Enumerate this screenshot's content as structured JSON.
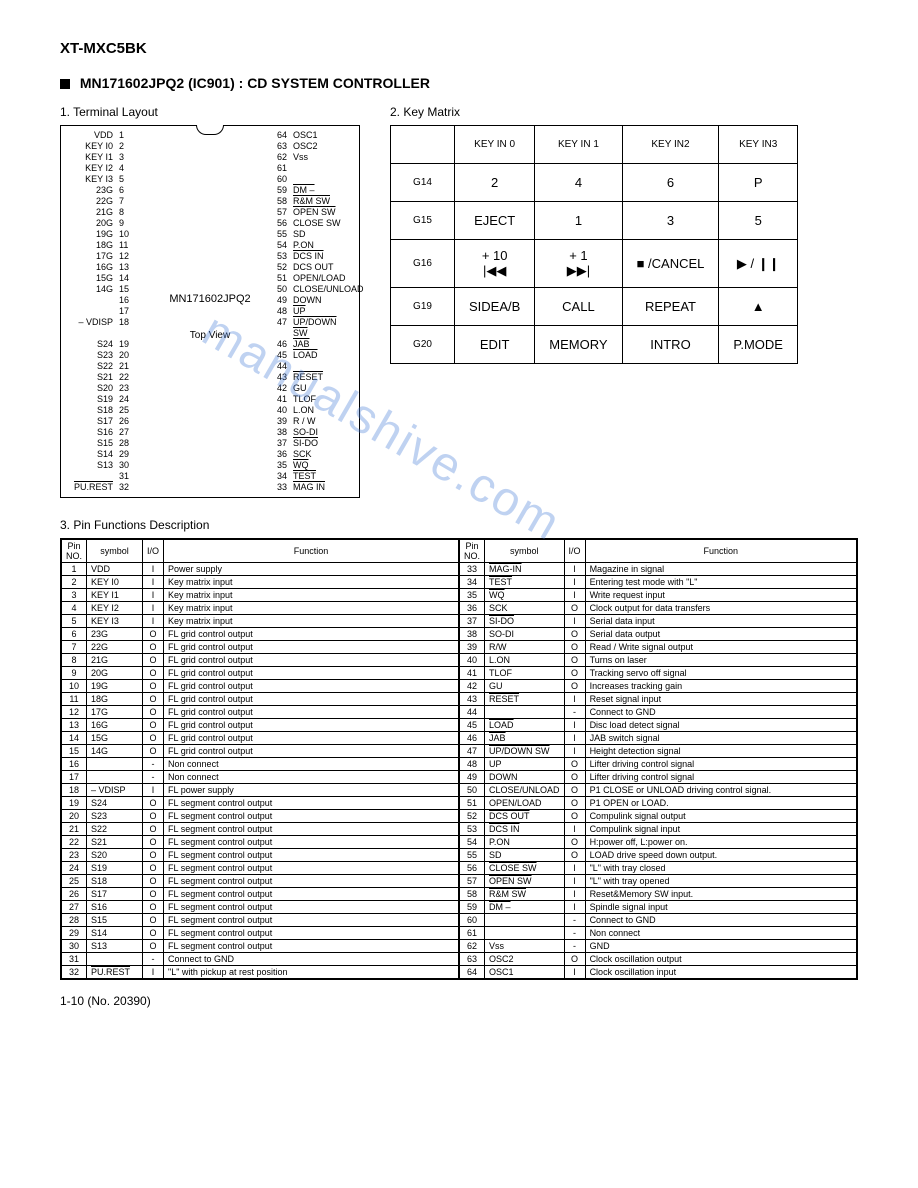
{
  "doc_title": "XT-MXC5BK",
  "section_title": "MN171602JPQ2 (IC901) : CD SYSTEM CONTROLLER",
  "sub1": "1.   Terminal  Layout",
  "sub2": "2.   Key Matrix",
  "sub3": "3.   Pin Functions Description",
  "chip_name": "MN171602JPQ2",
  "chip_view": "Top View",
  "footer": "1-10 (No. 20390)",
  "watermark": "manualshive.com",
  "pins_left": [
    {
      "lbl": "VDD",
      "n": "1"
    },
    {
      "lbl": "KEY I0",
      "n": "2"
    },
    {
      "lbl": "KEY I1",
      "n": "3"
    },
    {
      "lbl": "KEY I2",
      "n": "4"
    },
    {
      "lbl": "KEY I3",
      "n": "5"
    },
    {
      "lbl": "23G",
      "n": "6"
    },
    {
      "lbl": "22G",
      "n": "7"
    },
    {
      "lbl": "21G",
      "n": "8"
    },
    {
      "lbl": "20G",
      "n": "9"
    },
    {
      "lbl": "19G",
      "n": "10"
    },
    {
      "lbl": "18G",
      "n": "11"
    },
    {
      "lbl": "17G",
      "n": "12"
    },
    {
      "lbl": "16G",
      "n": "13"
    },
    {
      "lbl": "15G",
      "n": "14"
    },
    {
      "lbl": "14G",
      "n": "15"
    },
    {
      "lbl": "",
      "n": "16"
    },
    {
      "lbl": "",
      "n": "17"
    },
    {
      "lbl": "– VDISP",
      "n": "18"
    },
    {
      "lbl": "S24",
      "n": "19"
    },
    {
      "lbl": "S23",
      "n": "20"
    },
    {
      "lbl": "S22",
      "n": "21"
    },
    {
      "lbl": "S21",
      "n": "22"
    },
    {
      "lbl": "S20",
      "n": "23"
    },
    {
      "lbl": "S19",
      "n": "24"
    },
    {
      "lbl": "S18",
      "n": "25"
    },
    {
      "lbl": "S17",
      "n": "26"
    },
    {
      "lbl": "S16",
      "n": "27"
    },
    {
      "lbl": "S15",
      "n": "28"
    },
    {
      "lbl": "S14",
      "n": "29"
    },
    {
      "lbl": "S13",
      "n": "30"
    },
    {
      "lbl": "",
      "n": "31"
    },
    {
      "lbl": "PU.REST",
      "n": "32",
      "ov": true
    }
  ],
  "pins_right": [
    {
      "n": "64",
      "lbl": "OSC1"
    },
    {
      "n": "63",
      "lbl": "OSC2"
    },
    {
      "n": "62",
      "lbl": "Vss"
    },
    {
      "n": "61",
      "lbl": ""
    },
    {
      "n": "60",
      "lbl": ""
    },
    {
      "n": "59",
      "lbl": "DM –",
      "ov": true
    },
    {
      "n": "58",
      "lbl": "R&M SW",
      "ov": true
    },
    {
      "n": "57",
      "lbl": "OPEN SW",
      "ov": true
    },
    {
      "n": "56",
      "lbl": "CLOSE SW"
    },
    {
      "n": "55",
      "lbl": "SD"
    },
    {
      "n": "54",
      "lbl": "P.ON"
    },
    {
      "n": "53",
      "lbl": "DCS IN",
      "ov": true
    },
    {
      "n": "52",
      "lbl": "DCS OUT"
    },
    {
      "n": "51",
      "lbl": "OPEN/LOAD"
    },
    {
      "n": "50",
      "lbl": "CLOSE/UNLOAD"
    },
    {
      "n": "49",
      "lbl": "DOWN"
    },
    {
      "n": "48",
      "lbl": "UP",
      "ov": true
    },
    {
      "n": "47",
      "lbl": "UP/DOWN SW",
      "ov": true
    },
    {
      "n": "46",
      "lbl": "JAB",
      "ov": true
    },
    {
      "n": "45",
      "lbl": "LOAD",
      "ov": true
    },
    {
      "n": "44",
      "lbl": ""
    },
    {
      "n": "43",
      "lbl": "RESET",
      "ov": true
    },
    {
      "n": "42",
      "lbl": "GU"
    },
    {
      "n": "41",
      "lbl": "TLOF"
    },
    {
      "n": "40",
      "lbl": "L.ON"
    },
    {
      "n": "39",
      "lbl": "R / W"
    },
    {
      "n": "38",
      "lbl": "SO-DI"
    },
    {
      "n": "37",
      "lbl": "SI-DO",
      "ov": true
    },
    {
      "n": "36",
      "lbl": "SCK"
    },
    {
      "n": "35",
      "lbl": "WQ",
      "ov": true
    },
    {
      "n": "34",
      "lbl": "TEST",
      "ov": true
    },
    {
      "n": "33",
      "lbl": "MAG IN",
      "ov": true
    }
  ],
  "km_headers": [
    "",
    "KEY IN 0",
    "KEY IN 1",
    "KEY IN2",
    "KEY IN3"
  ],
  "km_rows": [
    {
      "g": "G14",
      "c": [
        "2",
        "4",
        "6",
        "P"
      ]
    },
    {
      "g": "G15",
      "c": [
        "EJECT",
        "1",
        "3",
        "5"
      ]
    },
    {
      "g": "G16",
      "c": [
        "+ 10\n|◀◀",
        "+ 1\n▶▶|",
        "■ /CANCEL",
        "▶ / ❙❙"
      ]
    },
    {
      "g": "G19",
      "c": [
        "SIDEA/B",
        "CALL",
        "REPEAT",
        "▲"
      ]
    },
    {
      "g": "G20",
      "c": [
        "EDIT",
        "MEMORY",
        "INTRO",
        "P.MODE"
      ]
    }
  ],
  "pf_headers": [
    "Pin\nNO.",
    "symbol",
    "I/O",
    "Function"
  ],
  "pf_left": [
    [
      "1",
      "VDD",
      "I",
      "Power supply"
    ],
    [
      "2",
      "KEY I0",
      "I",
      "Key matrix input"
    ],
    [
      "3",
      "KEY I1",
      "I",
      "Key matrix input"
    ],
    [
      "4",
      "KEY I2",
      "I",
      "Key matrix input"
    ],
    [
      "5",
      "KEY I3",
      "I",
      "Key matrix input"
    ],
    [
      "6",
      "23G",
      "O",
      "FL grid control output"
    ],
    [
      "7",
      "22G",
      "O",
      "FL grid control output"
    ],
    [
      "8",
      "21G",
      "O",
      "FL grid control output"
    ],
    [
      "9",
      "20G",
      "O",
      "FL grid control output"
    ],
    [
      "10",
      "19G",
      "O",
      "FL grid control output"
    ],
    [
      "11",
      "18G",
      "O",
      "FL grid control output"
    ],
    [
      "12",
      "17G",
      "O",
      "FL grid control output"
    ],
    [
      "13",
      "16G",
      "O",
      "FL grid control output"
    ],
    [
      "14",
      "15G",
      "O",
      "FL grid control output"
    ],
    [
      "15",
      "14G",
      "O",
      "FL grid control output"
    ],
    [
      "16",
      "",
      "-",
      "Non connect"
    ],
    [
      "17",
      "",
      "-",
      "Non connect"
    ],
    [
      "18",
      "– VDISP",
      "I",
      "FL power supply"
    ],
    [
      "19",
      "S24",
      "O",
      "FL segment control output"
    ],
    [
      "20",
      "S23",
      "O",
      "FL segment control output"
    ],
    [
      "21",
      "S22",
      "O",
      "FL segment control output"
    ],
    [
      "22",
      "S21",
      "O",
      "FL segment control output"
    ],
    [
      "23",
      "S20",
      "O",
      "FL segment control output"
    ],
    [
      "24",
      "S19",
      "O",
      "FL segment control output"
    ],
    [
      "25",
      "S18",
      "O",
      "FL segment control output"
    ],
    [
      "26",
      "S17",
      "O",
      "FL segment control output"
    ],
    [
      "27",
      "S16",
      "O",
      "FL segment control output"
    ],
    [
      "28",
      "S15",
      "O",
      "FL segment control output"
    ],
    [
      "29",
      "S14",
      "O",
      "FL segment control output"
    ],
    [
      "30",
      "S13",
      "O",
      "FL segment control output"
    ],
    [
      "31",
      "",
      "-",
      "Connect to GND"
    ],
    [
      "32",
      "PU.REST",
      "I",
      "\"L\" with pickup at rest position"
    ]
  ],
  "pf_right": [
    [
      "33",
      "MAG-IN",
      "I",
      "Magazine in signal"
    ],
    [
      "34",
      "TEST",
      "I",
      "Entering test mode with \"L\""
    ],
    [
      "35",
      "WQ",
      "I",
      "Write request input"
    ],
    [
      "36",
      "SCK",
      "O",
      "Clock output for data  transfers"
    ],
    [
      "37",
      "SI-DO",
      "I",
      "Serial data input"
    ],
    [
      "38",
      "SO-DI",
      "O",
      "Serial data output"
    ],
    [
      "39",
      "R/W",
      "O",
      "Read / Write signal output"
    ],
    [
      "40",
      "L.ON",
      "O",
      "Turns on laser"
    ],
    [
      "41",
      "TLOF",
      "O",
      "Tracking servo off signal"
    ],
    [
      "42",
      "GU",
      "O",
      "Increases tracking gain"
    ],
    [
      "43",
      "RESET",
      "I",
      "Reset signal input"
    ],
    [
      "44",
      "",
      "-",
      "Connect to GND"
    ],
    [
      "45",
      "LOAD",
      "I",
      "Disc load detect signal"
    ],
    [
      "46",
      "JAB",
      "I",
      "JAB switch signal"
    ],
    [
      "47",
      "UP/DOWN SW",
      "I",
      "Height detection signal"
    ],
    [
      "48",
      "UP",
      "O",
      "Lifter driving control signal"
    ],
    [
      "49",
      "DOWN",
      "O",
      "Lifter driving control signal"
    ],
    [
      "50",
      "CLOSE/UNLOAD",
      "O",
      "P1 CLOSE or UNLOAD driving control signal."
    ],
    [
      "51",
      "OPEN/LOAD",
      "O",
      "P1 OPEN or LOAD."
    ],
    [
      "52",
      "DCS OUT",
      "O",
      "Compulink signal output"
    ],
    [
      "53",
      "DCS IN",
      "I",
      "Compulink signal input"
    ],
    [
      "54",
      "P.ON",
      "O",
      "H:power off, L:power on."
    ],
    [
      "55",
      "SD",
      "O",
      "LOAD drive speed down output."
    ],
    [
      "56",
      "CLOSE SW",
      "I",
      "\"L\" with tray closed"
    ],
    [
      "57",
      "OPEN SW",
      "I",
      "\"L\" with tray opened"
    ],
    [
      "58",
      "R&M SW",
      "I",
      "Reset&Memory SW input."
    ],
    [
      "59",
      "DM –",
      "I",
      "Spindle signal input"
    ],
    [
      "60",
      "",
      "-",
      "Connect to GND"
    ],
    [
      "61",
      "",
      "-",
      "Non connect"
    ],
    [
      "62",
      "Vss",
      "-",
      "GND"
    ],
    [
      "63",
      "OSC2",
      "O",
      "Clock oscillation output"
    ],
    [
      "64",
      "OSC1",
      "I",
      "Clock oscillation input"
    ]
  ],
  "pf_overlines_left": {
    "32": true
  },
  "pf_overlines_right": {
    "33": true,
    "34": true,
    "35": true,
    "37": true,
    "43": true,
    "45": true,
    "46": true,
    "47": true,
    "52": true,
    "53": true,
    "56": true,
    "57": true,
    "58": true,
    "59": true
  }
}
